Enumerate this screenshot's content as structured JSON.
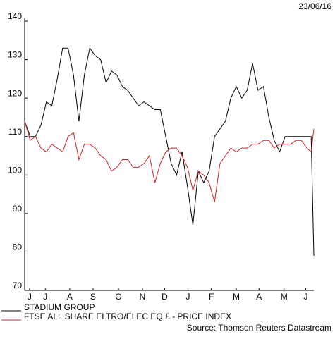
{
  "chart_data": {
    "type": "line",
    "date": "23/06/16",
    "source": "Source: Thomson Reuters Datastream",
    "x": [
      0,
      1,
      2,
      3,
      4,
      5,
      6,
      7,
      8,
      9,
      10,
      11,
      12,
      13,
      14,
      15,
      16,
      17,
      18,
      19,
      20,
      21,
      22,
      23,
      24,
      25,
      26,
      27,
      28,
      29,
      30,
      31,
      32,
      33,
      34,
      35,
      36,
      37,
      38,
      39,
      40,
      41,
      42,
      43,
      44,
      45,
      46,
      47,
      48,
      49,
      50,
      51,
      52,
      52.8,
      53.3
    ],
    "xlim": [
      0,
      53.3
    ],
    "xticks": [
      {
        "value": 0.9,
        "label": "J"
      },
      {
        "value": 3.8,
        "label": "J"
      },
      {
        "value": 8.3,
        "label": "A"
      },
      {
        "value": 12.6,
        "label": "S"
      },
      {
        "value": 17.3,
        "label": "O"
      },
      {
        "value": 21.7,
        "label": "N"
      },
      {
        "value": 25.8,
        "label": "D"
      },
      {
        "value": 30.1,
        "label": "J"
      },
      {
        "value": 34.4,
        "label": "F"
      },
      {
        "value": 39,
        "label": "M"
      },
      {
        "value": 43.2,
        "label": "A"
      },
      {
        "value": 47.8,
        "label": "M"
      },
      {
        "value": 51.8,
        "label": "J"
      }
    ],
    "ylim": [
      70,
      140
    ],
    "yticks": [
      70,
      80,
      90,
      100,
      110,
      120,
      130,
      140
    ],
    "grid": false,
    "series": [
      {
        "name": "STADIUM GROUP",
        "color": "#000000",
        "values": [
          114,
          110,
          110,
          113,
          119,
          118,
          125,
          133,
          133,
          126,
          114,
          126,
          133,
          131,
          130,
          124,
          127,
          126,
          123,
          122,
          120,
          118,
          119,
          118,
          117,
          117,
          110,
          103,
          100,
          106,
          97,
          87,
          101,
          98,
          101,
          110,
          112,
          114,
          120,
          123,
          120,
          122,
          129,
          122,
          123,
          115,
          109,
          106,
          110,
          110,
          110,
          110,
          110,
          110,
          79
        ]
      },
      {
        "name": "FTSE ALL SHARE ELTRO/ELEC EQ £ - PRICE INDEX",
        "color": "#d0202a",
        "values": [
          114,
          109,
          110,
          107,
          106,
          108,
          107,
          106,
          110,
          111,
          104,
          108,
          108,
          107,
          105,
          104,
          101,
          102,
          104,
          104,
          102,
          102,
          103,
          105,
          98,
          103,
          106,
          107,
          107,
          105,
          102,
          96,
          101,
          100,
          98,
          93,
          103,
          105,
          107,
          106,
          107,
          107,
          108,
          108,
          109,
          109,
          107,
          108,
          108,
          108,
          109,
          109,
          107,
          106,
          112
        ]
      }
    ]
  }
}
